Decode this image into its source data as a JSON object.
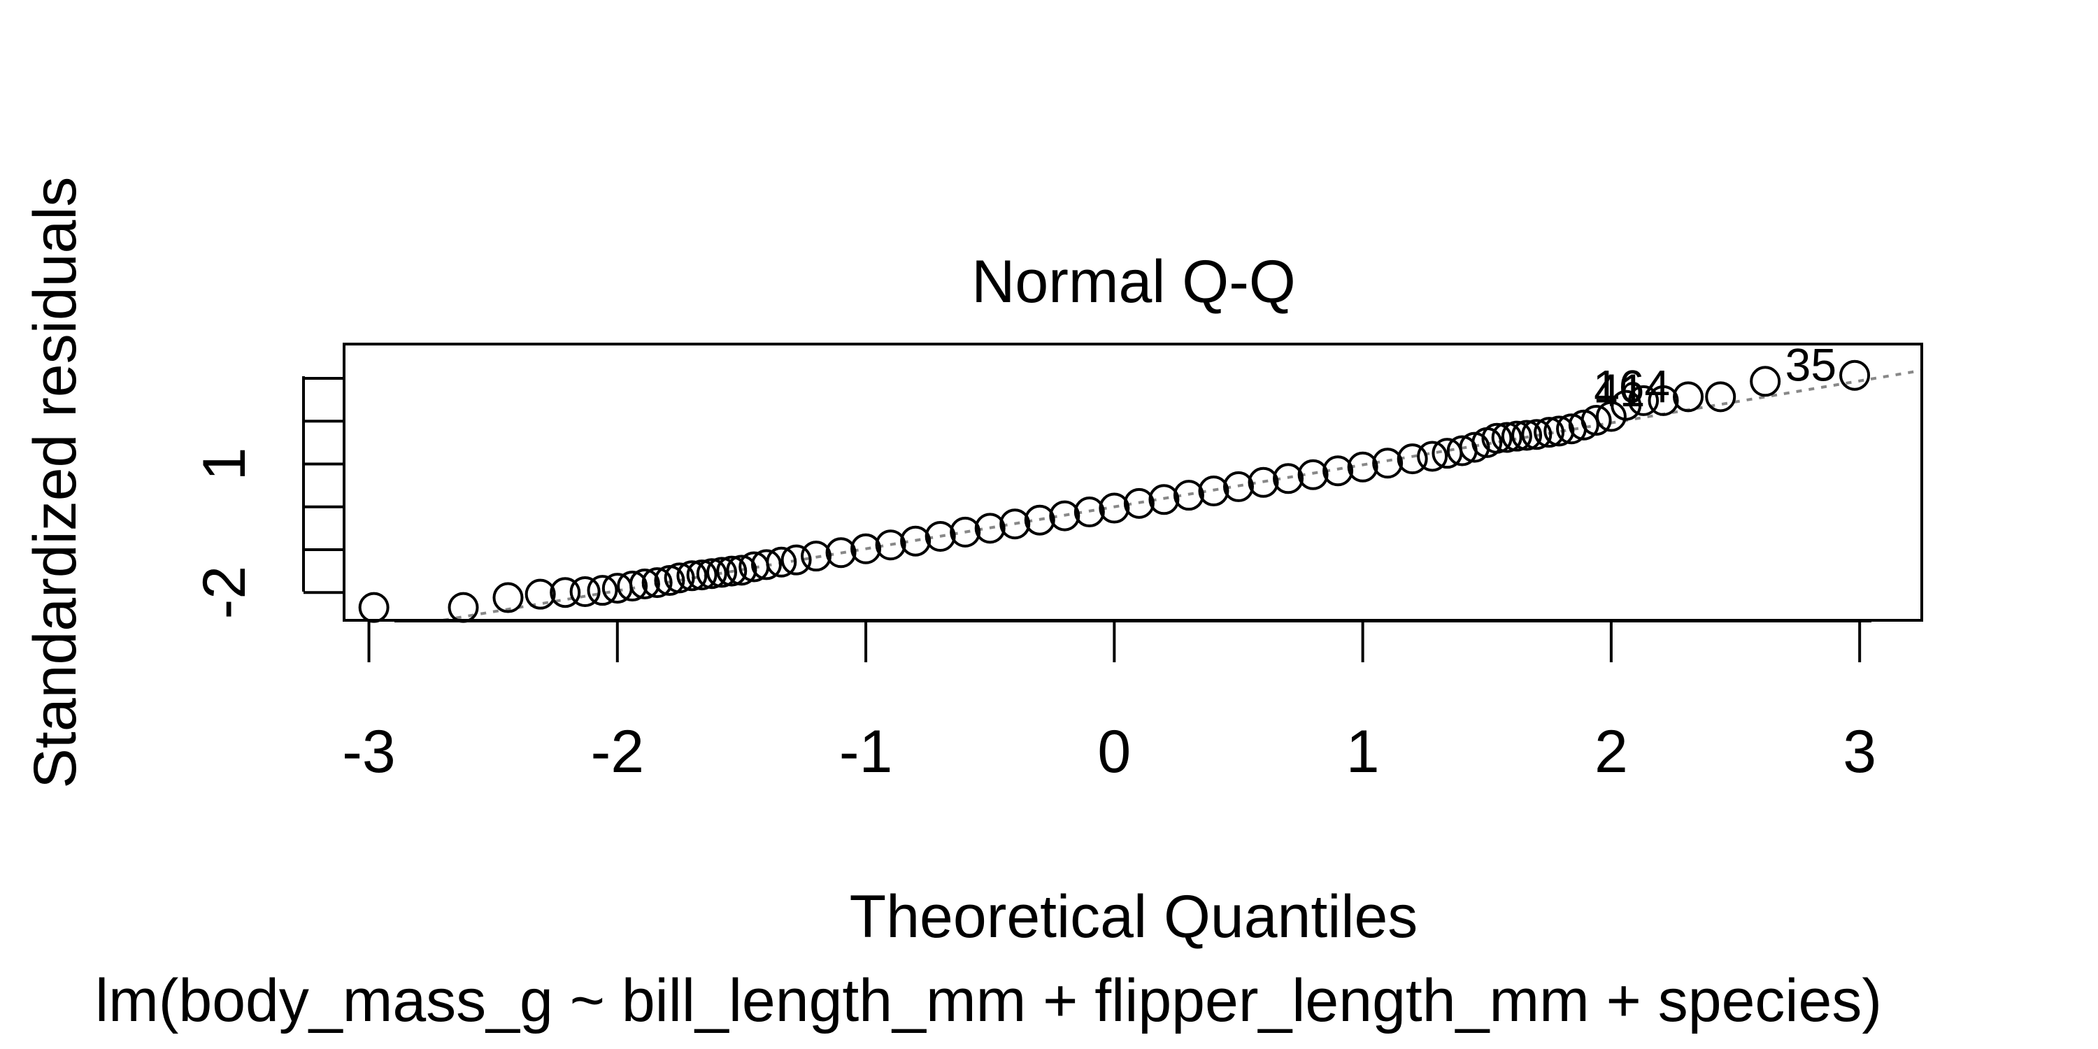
{
  "chart_data": {
    "type": "scatter",
    "title": "Normal Q-Q",
    "xlabel": "Theoretical Quantiles",
    "ylabel": "Standardized residuals",
    "caption": "lm(body_mass_g ~ bill_length_mm + flipper_length_mm + species)",
    "xlim": [
      -3.1,
      3.25
    ],
    "ylim": [
      -2.65,
      3.8
    ],
    "xticks": [
      -3,
      -2,
      -1,
      0,
      1,
      2,
      3
    ],
    "xtick_labels": [
      "-3",
      "-2",
      "-1",
      "0",
      "1",
      "2",
      "3"
    ],
    "yticks": [
      -2,
      -1,
      0,
      1,
      2,
      3
    ],
    "ytick_labels": [
      "-2",
      "",
      "",
      "1",
      "",
      ""
    ],
    "grid": false,
    "reference_line": {
      "intercept": 0.0,
      "slope": 0.98,
      "style": "dotted",
      "color": "#888888"
    },
    "points": {
      "x": [
        -2.98,
        -2.62,
        -2.44,
        -2.31,
        -2.21,
        -2.13,
        -2.06,
        -2.0,
        -1.94,
        -1.89,
        -1.84,
        -1.79,
        -1.75,
        -1.7,
        -1.66,
        -1.62,
        -1.58,
        -1.54,
        -1.5,
        -1.45,
        -1.4,
        -1.34,
        -1.28,
        -1.2,
        -1.1,
        -1.0,
        -0.9,
        -0.8,
        -0.7,
        -0.6,
        -0.5,
        -0.4,
        -0.3,
        -0.2,
        -0.1,
        0.0,
        0.1,
        0.2,
        0.3,
        0.4,
        0.5,
        0.6,
        0.7,
        0.8,
        0.9,
        1.0,
        1.1,
        1.2,
        1.28,
        1.34,
        1.4,
        1.45,
        1.5,
        1.54,
        1.58,
        1.62,
        1.66,
        1.7,
        1.75,
        1.79,
        1.84,
        1.89,
        1.94,
        2.0,
        2.06,
        2.13,
        2.21,
        2.31,
        2.44,
        2.62,
        2.98
      ],
      "y": [
        -2.35,
        -2.35,
        -2.12,
        -2.04,
        -2.0,
        -1.98,
        -1.95,
        -1.9,
        -1.85,
        -1.8,
        -1.77,
        -1.72,
        -1.66,
        -1.61,
        -1.59,
        -1.56,
        -1.53,
        -1.5,
        -1.48,
        -1.4,
        -1.35,
        -1.29,
        -1.24,
        -1.15,
        -1.07,
        -0.98,
        -0.89,
        -0.8,
        -0.69,
        -0.59,
        -0.5,
        -0.4,
        -0.31,
        -0.21,
        -0.12,
        -0.03,
        0.08,
        0.17,
        0.27,
        0.37,
        0.47,
        0.57,
        0.66,
        0.75,
        0.84,
        0.93,
        1.02,
        1.12,
        1.18,
        1.25,
        1.31,
        1.39,
        1.5,
        1.6,
        1.62,
        1.65,
        1.67,
        1.69,
        1.74,
        1.77,
        1.82,
        1.91,
        2.02,
        2.11,
        2.37,
        2.48,
        2.48,
        2.57,
        2.57,
        2.93,
        3.07
      ]
    },
    "point_labels": [
      {
        "text": "164",
        "x": 2.31,
        "y": 2.57
      },
      {
        "text": "35",
        "x": 2.98,
        "y": 3.07
      },
      {
        "text": "41",
        "x": 2.21,
        "y": 2.48
      }
    ]
  }
}
